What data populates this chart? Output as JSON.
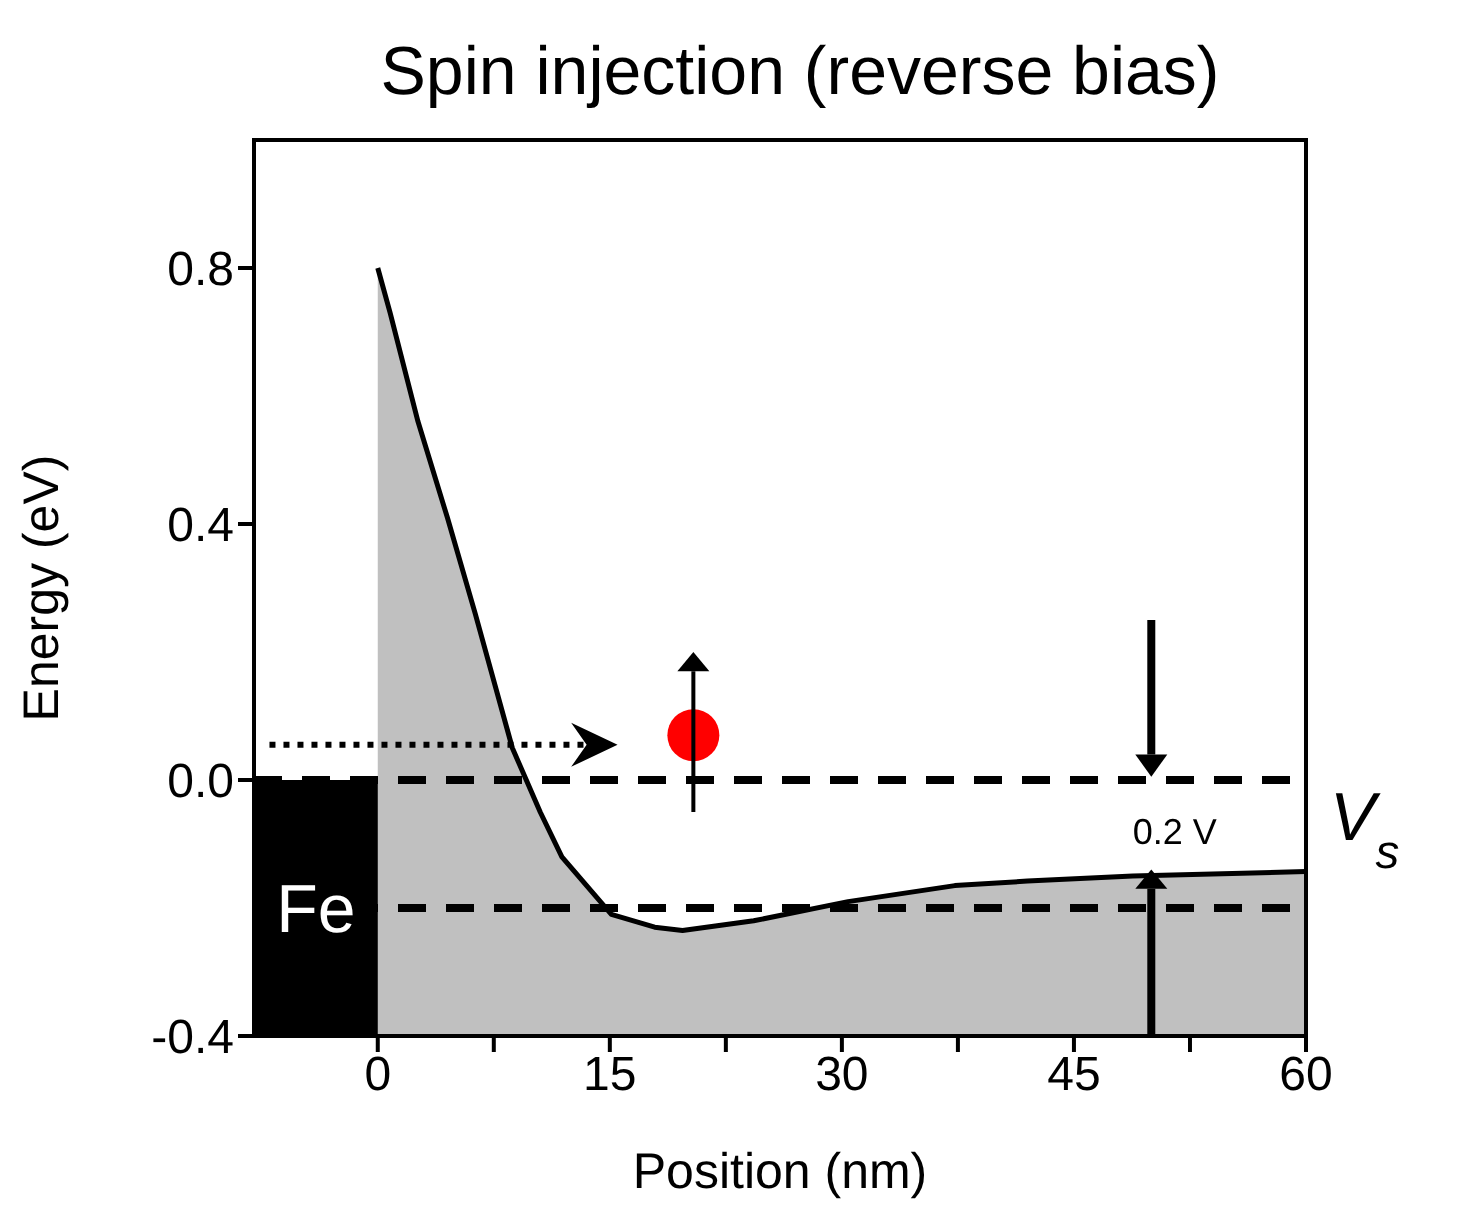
{
  "chart_data": {
    "type": "line",
    "title": "Spin injection (reverse bias)",
    "xlabel": "Position (nm)",
    "ylabel": "Energy (eV)",
    "x": [
      0,
      0.8,
      2.6,
      4.5,
      6.3,
      8.7,
      10.5,
      11.9,
      15.1,
      17.9,
      19.7,
      24.3,
      30.4,
      37.3,
      42,
      48.8,
      60
    ],
    "series": [
      {
        "color": "#000000",
        "values": [
          0.8,
          0.73,
          0.56,
          0.41,
          0.26,
          0.05,
          -0.05,
          -0.12,
          -0.21,
          -0.23,
          -0.235,
          -0.22,
          -0.19,
          -0.165,
          -0.158,
          -0.15,
          -0.143
        ],
        "lower": [
          -0.4,
          -0.4,
          -0.4,
          -0.4,
          -0.4,
          -0.4,
          -0.4,
          -0.4,
          -0.4,
          -0.4,
          -0.4,
          -0.4,
          -0.4,
          -0.4,
          -0.4,
          -0.4,
          -0.4
        ],
        "upper": [
          0.8,
          0.73,
          0.56,
          0.41,
          0.26,
          0.05,
          -0.05,
          -0.12,
          -0.21,
          -0.23,
          -0.235,
          -0.22,
          -0.19,
          -0.165,
          -0.158,
          -0.15,
          -0.143
        ]
      },
      {
        "type": "bar",
        "x": [
          -4
        ],
        "base": [
          -0.4
        ],
        "values": [
          0.4
        ],
        "color": "#000000"
      }
    ],
    "xlim": [
      -8,
      60
    ],
    "ylim": [
      -0.4,
      1.0
    ],
    "xticks": [
      0,
      {
        "value": 7.5,
        "label": null
      },
      15,
      {
        "value": 22.5,
        "label": null
      },
      30,
      {
        "value": 37.5,
        "label": null
      },
      45,
      {
        "value": 52.5,
        "label": null
      },
      60
    ],
    "yticks": [
      -0.4,
      {
        "value": 0,
        "label": "0.0"
      },
      0.4,
      0.8
    ],
    "ref_lines": [
      {
        "axis": "y",
        "value": 0,
        "line_style": "dashed",
        "color": "#000000"
      },
      {
        "axis": "y",
        "value": -0.2,
        "line_style": "dashed",
        "color": "#000000"
      }
    ],
    "annotations": [
      {
        "text": "Fe",
        "x": -4,
        "y": -0.2
      },
      {
        "text": "0.2 V",
        "x": 48.8,
        "y": -0.15
      },
      "V$_{s}$"
    ]
  }
}
